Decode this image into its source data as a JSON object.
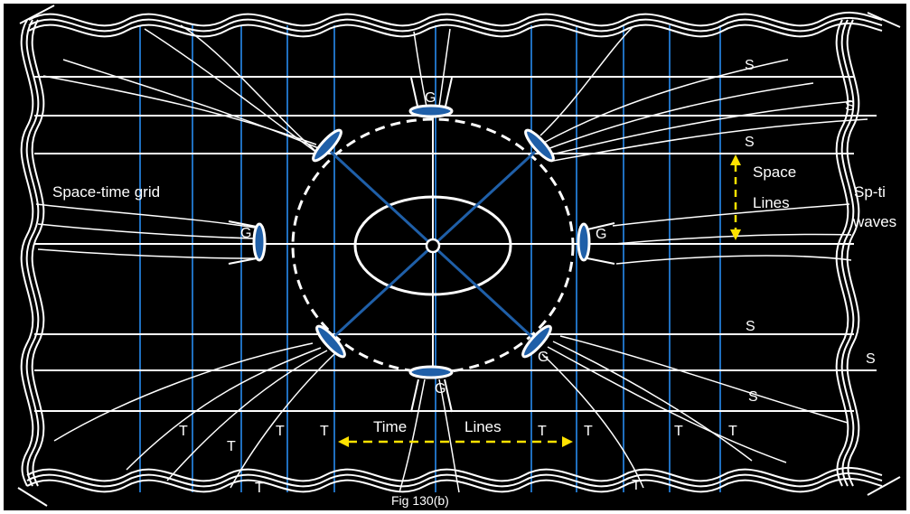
{
  "diagram": {
    "caption": "Fig 130(b)",
    "labels": {
      "grid": "Space-time grid",
      "space_lines_1": "Space",
      "space_lines_2": "Lines",
      "waves_1": "Sp-ti",
      "waves_2": "waves",
      "time": "Time",
      "lines": "Lines",
      "s": "S",
      "t": "T",
      "g": "G"
    },
    "colors": {
      "background": "#000000",
      "space_line": "#ffffff",
      "time_line": "#1f6fbf",
      "diagonal": "#1f5fa8",
      "arrow": "#ffe200",
      "frame": "#ffffff"
    }
  }
}
